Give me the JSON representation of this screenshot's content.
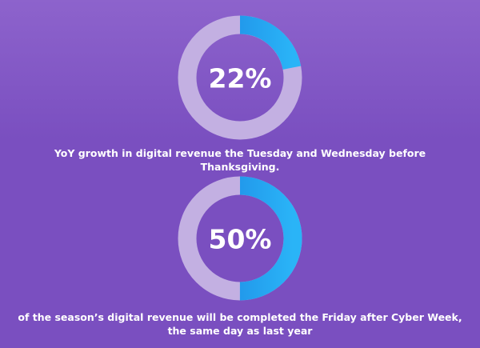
{
  "chart_data": [
    {
      "type": "donut",
      "values": [
        22
      ],
      "value_labels": [
        "22%"
      ],
      "gradient": [
        "#1a7fe0",
        "#2ab4f7"
      ],
      "track_color": "#c3b0e2",
      "caption": "YoY growth in digital revenue the Tuesday and Wednesday before Thanksgiving."
    },
    {
      "type": "donut",
      "values": [
        50
      ],
      "value_labels": [
        "50%"
      ],
      "gradient": [
        "#1a7fe0",
        "#2ab4f7"
      ],
      "track_color": "#c3b0e2",
      "caption": "of the season’s digital revenue will be completed the Friday after Cyber Week, the same day as last year"
    }
  ]
}
